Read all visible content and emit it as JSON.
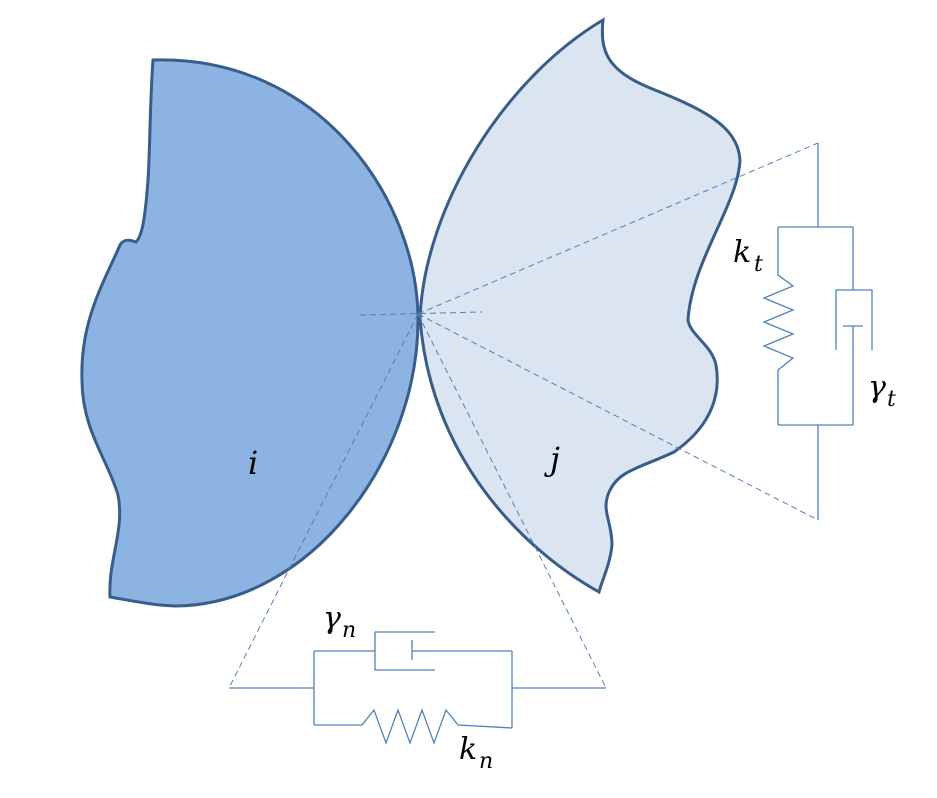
{
  "colors": {
    "particle_i_fill": "#8db3e2",
    "particle_j_fill": "#dbe5f1",
    "outline": "#385d8a",
    "guide_lines": "#4f81bd",
    "circuit_lines": "#4f81bd"
  },
  "particles": {
    "i": {
      "label": "i"
    },
    "j": {
      "label": "j"
    }
  },
  "tangential_model": {
    "spring": {
      "symbol": "k",
      "subscript": "t"
    },
    "damper": {
      "symbol": "γ",
      "subscript": "t"
    }
  },
  "normal_model": {
    "spring": {
      "symbol": "k",
      "subscript": "n"
    },
    "damper": {
      "symbol": "γ",
      "subscript": "n"
    }
  }
}
